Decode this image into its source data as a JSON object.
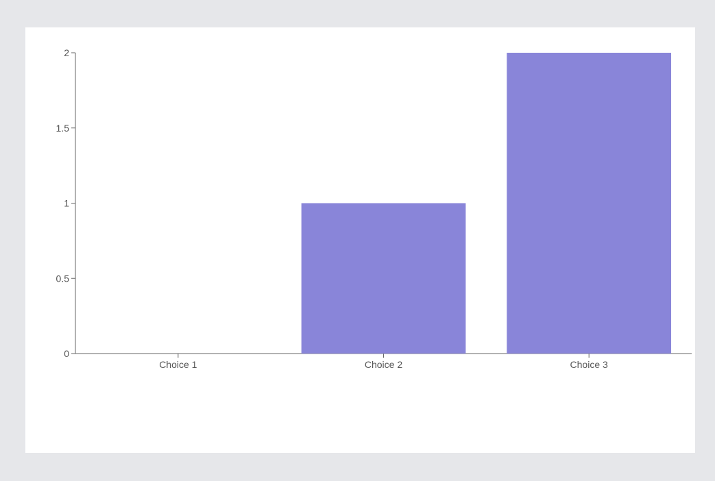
{
  "chart_data": {
    "type": "bar",
    "categories": [
      "Choice 1",
      "Choice 2",
      "Choice 3"
    ],
    "values": [
      0,
      1,
      2
    ],
    "ylim": [
      0,
      2
    ],
    "y_ticks": [
      0,
      0.5,
      1,
      1.5,
      2
    ],
    "y_tick_labels": [
      "0",
      "0.5",
      "1",
      "1.5",
      "2"
    ],
    "grid": false,
    "legend": "none",
    "bar_color": "#8985d9",
    "axis_color": "#666666",
    "label_color": "#555555",
    "background": "#e6e7ea",
    "card_background": "#ffffff"
  }
}
